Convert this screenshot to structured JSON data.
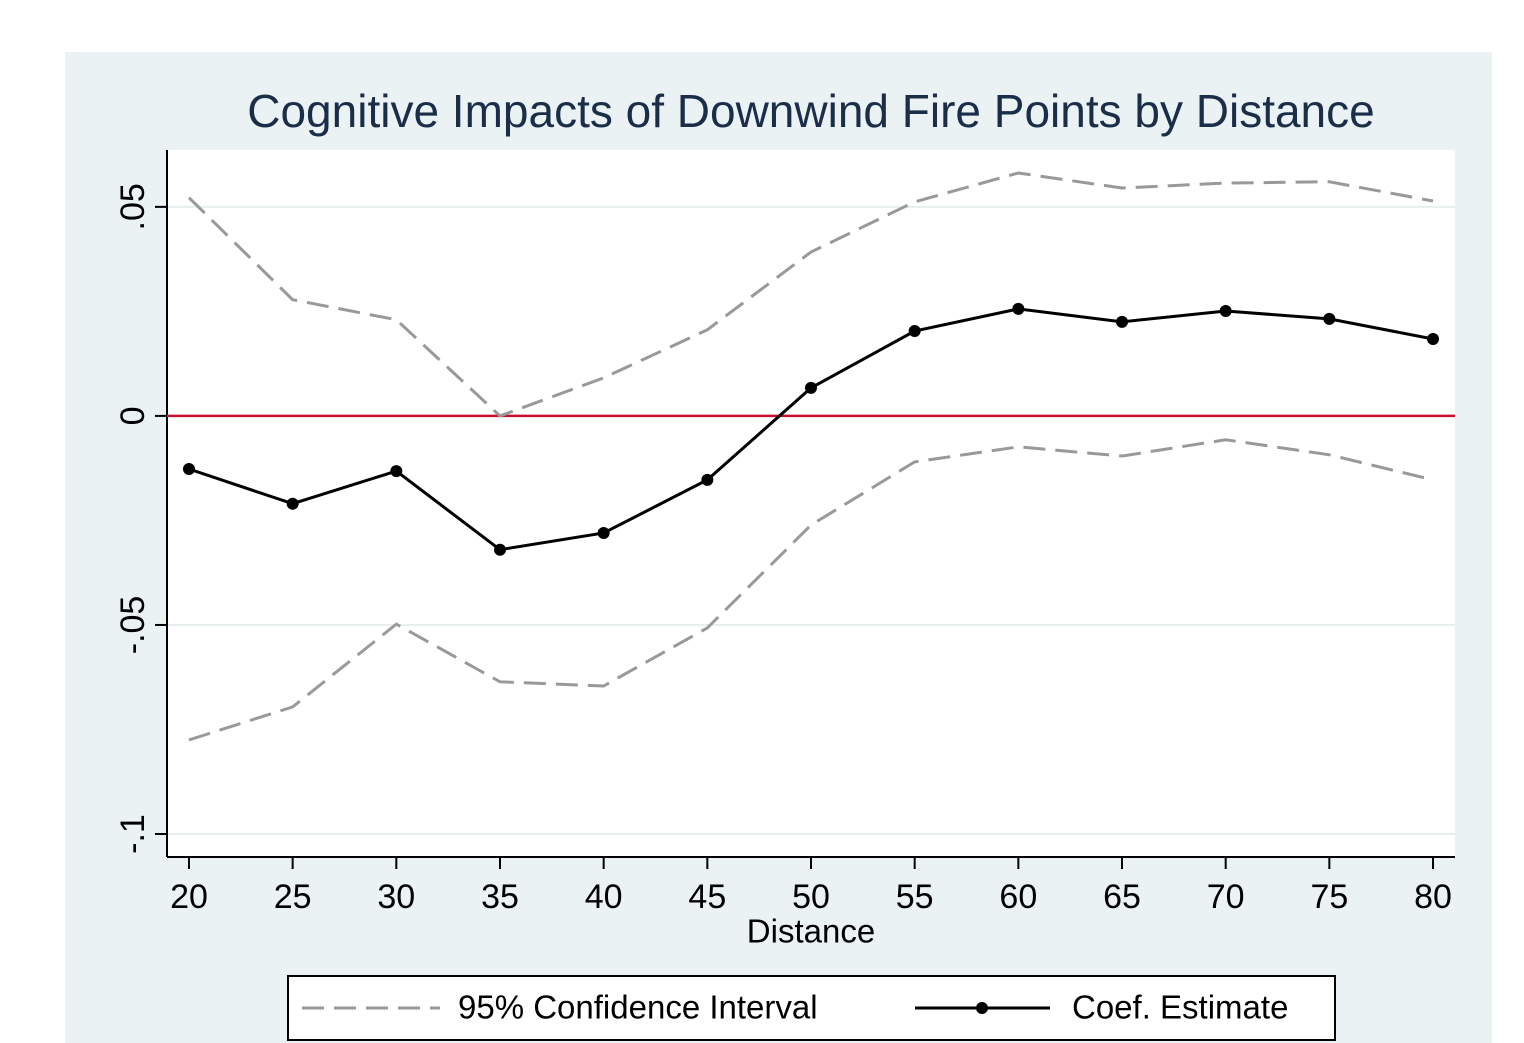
{
  "chart_data": {
    "type": "line",
    "title": "Cognitive Impacts of Downwind Fire Points by Distance",
    "xlabel": "Distance",
    "x": [
      20,
      25,
      30,
      35,
      40,
      45,
      50,
      55,
      60,
      65,
      70,
      75,
      80
    ],
    "ci": {
      "name": "95% Confidence Interval",
      "color": "#999999",
      "upper": [
        0.0522,
        0.0278,
        0.023,
        0.0,
        0.0091,
        0.0206,
        0.0392,
        0.0512,
        0.0581,
        0.0545,
        0.0557,
        0.056,
        0.0514
      ],
      "lower": [
        -0.0775,
        -0.0696,
        -0.0498,
        -0.0636,
        -0.0646,
        -0.0507,
        -0.0261,
        -0.011,
        -0.0074,
        -0.0096,
        -0.0057,
        -0.0093,
        -0.0153
      ]
    },
    "series": [
      {
        "name": "Coef. Estimate",
        "color": "#000000",
        "values": [
          -0.0127,
          -0.021,
          -0.0132,
          -0.032,
          -0.028,
          -0.0153,
          0.0067,
          0.0203,
          0.0256,
          0.0225,
          0.0251,
          0.0232,
          0.0184
        ]
      }
    ],
    "reference_line": {
      "value": 0,
      "color": "#c8102e"
    },
    "xlim": [
      18.94,
      81.06
    ],
    "xticks": [
      20,
      25,
      30,
      35,
      40,
      45,
      50,
      55,
      60,
      65,
      70,
      75,
      80
    ],
    "ylim": [
      -0.1055,
      0.0636
    ],
    "yticks": [
      {
        "value": 0.05,
        "label": ".05"
      },
      0,
      {
        "value": -0.05,
        "label": "-.05"
      },
      {
        "value": -0.1,
        "label": "-.1"
      }
    ],
    "grid": true,
    "legend": "bottom"
  }
}
